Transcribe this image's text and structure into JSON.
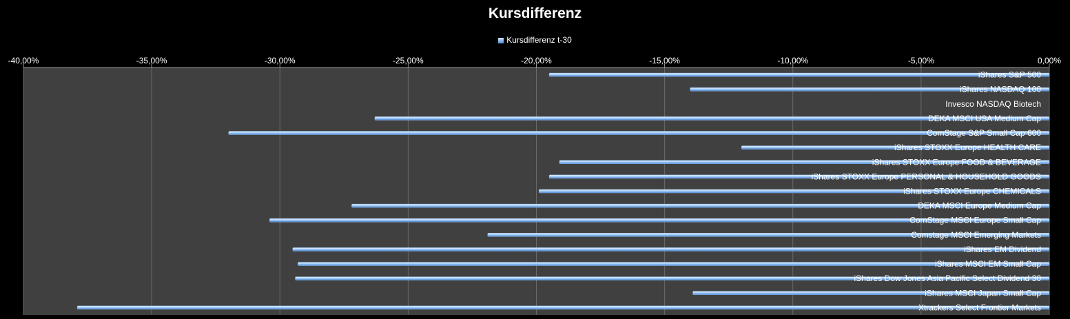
{
  "chart_data": {
    "type": "bar",
    "orientation": "horizontal",
    "title": "Kursdifferenz",
    "legend": {
      "position": "top",
      "entries": [
        "Kursdifferenz t-30"
      ]
    },
    "xlim": [
      -40,
      0
    ],
    "x_ticks": [
      "-40,00%",
      "-35,00%",
      "-30,00%",
      "-25,00%",
      "-20,00%",
      "-15,00%",
      "-10,00%",
      "-5,00%",
      "0,00%"
    ],
    "x_tick_values": [
      -40,
      -35,
      -30,
      -25,
      -20,
      -15,
      -10,
      -5,
      0
    ],
    "grid": true,
    "categories": [
      "iShares S&P 500",
      "iShares NASDAQ 100",
      "Invesco NASDAQ Biotech",
      "DEKA MSCI USA Medium Cap",
      "ComStage S&P Small Cap 600",
      "iShares STOXX Europe HEALTH CARE",
      "iShares STOXX Europe FOOD & BEVERAGE",
      "iShares STOXX Europe PERSONAL & HOUSEHOLD GOODS",
      "iShares STOXX Europe CHEMICALS",
      "DEKA MSCI Europe Medium Cap",
      "ComStage MSCI Europe Small Cap",
      "Comstage MSCI Emerging Markets",
      "iShares EM Dividend",
      "iShares MSCI EM Small Cap",
      "iShares Dow Jones Asia Pacific Select Dividend 30",
      "iShares MSCI Japan Small Cap",
      "Xtrackers Select Frontier Markets"
    ],
    "series": [
      {
        "name": "Kursdifferenz t-30",
        "values": [
          -19.5,
          -14.0,
          0,
          -26.3,
          -32.0,
          -12.0,
          -19.1,
          -19.5,
          -19.9,
          -27.2,
          -30.4,
          -21.9,
          -29.5,
          -29.3,
          -29.4,
          -13.9,
          -37.9
        ]
      }
    ],
    "colors": {
      "bar_light": "#cfe6ff",
      "bar_dark": "#3f7fcf",
      "plot_bg": "#404040",
      "grid": "#6a6a6a",
      "text": "#ffffff"
    }
  }
}
